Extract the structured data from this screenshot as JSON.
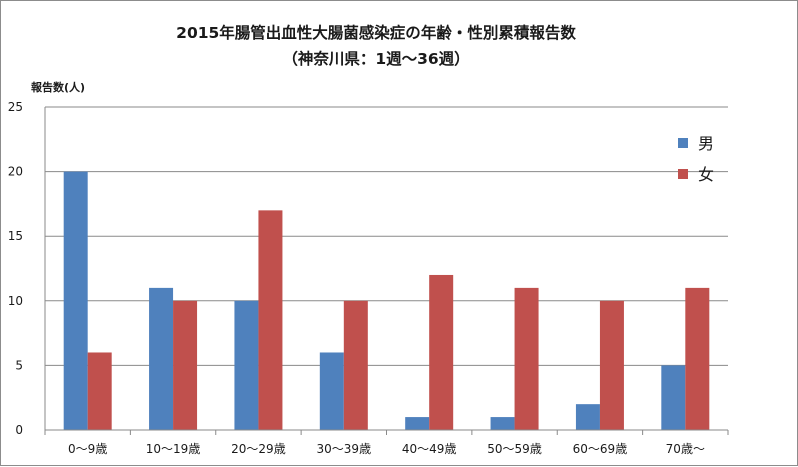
{
  "chart_data": {
    "type": "bar",
    "title_lines": [
      "2015年腸管出血性大腸菌感染症の年齢・性別累積報告数",
      "（神奈川県：1週～36週）"
    ],
    "ylabel": "報告数(人)",
    "xlabel": "",
    "categories": [
      "0～9歳",
      "10～19歳",
      "20～29歳",
      "30～39歳",
      "40～49歳",
      "50～59歳",
      "60～69歳",
      "70歳～"
    ],
    "series": [
      {
        "name": "男",
        "color": "#4f81bd",
        "values": [
          20,
          11,
          10,
          6,
          1,
          1,
          2,
          5
        ]
      },
      {
        "name": "女",
        "color": "#c0504d",
        "values": [
          6,
          10,
          17,
          10,
          12,
          11,
          10,
          11
        ]
      }
    ],
    "ylim": [
      0,
      25
    ],
    "yticks": [
      0,
      5,
      10,
      15,
      20,
      25
    ],
    "grid": true,
    "legend_position": "right"
  }
}
